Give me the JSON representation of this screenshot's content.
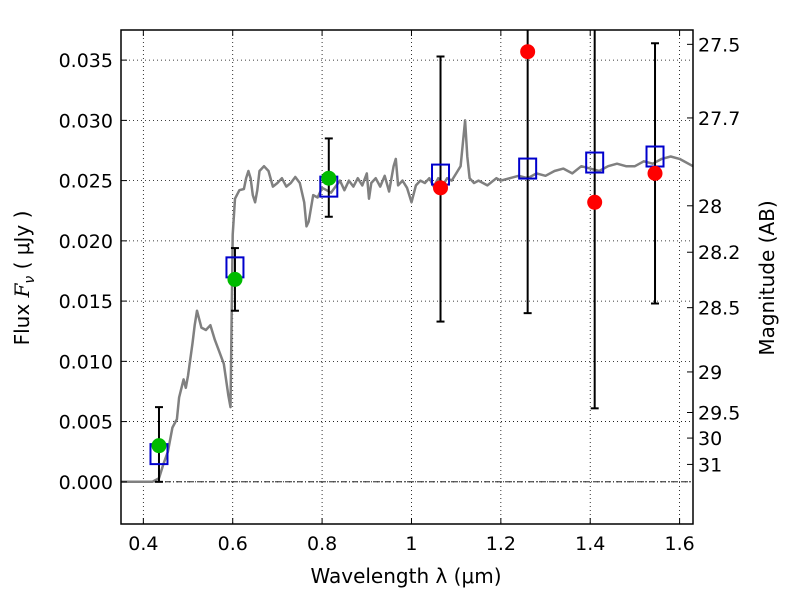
{
  "chart_data": {
    "type": "scatter",
    "xlabel": "Wavelength  λ (μm)",
    "ylabel_prefix": "Flux ",
    "ylabel_symbol": "F",
    "ylabel_sub": "ν",
    "ylabel_suffix": " ( μJy )",
    "y2label": "Magnitude (AB)",
    "xlim": [
      0.35,
      1.63
    ],
    "ylim": [
      -0.0035,
      0.0375
    ],
    "x_ticks": [
      {
        "v": 0.4,
        "label": "0.4"
      },
      {
        "v": 0.6,
        "label": "0.6"
      },
      {
        "v": 0.8,
        "label": "0.8"
      },
      {
        "v": 1.0,
        "label": "1"
      },
      {
        "v": 1.2,
        "label": "1.2"
      },
      {
        "v": 1.4,
        "label": "1.4"
      },
      {
        "v": 1.6,
        "label": "1.6"
      }
    ],
    "y_ticks": [
      {
        "v": 0.0,
        "label": "0.000"
      },
      {
        "v": 0.005,
        "label": "0.005"
      },
      {
        "v": 0.01,
        "label": "0.010"
      },
      {
        "v": 0.015,
        "label": "0.015"
      },
      {
        "v": 0.02,
        "label": "0.020"
      },
      {
        "v": 0.025,
        "label": "0.025"
      },
      {
        "v": 0.03,
        "label": "0.030"
      },
      {
        "v": 0.035,
        "label": "0.035"
      }
    ],
    "mag_ticks": [
      {
        "label": "27.5",
        "mag": 27.5
      },
      {
        "label": "27.7",
        "mag": 27.7
      },
      {
        "label": "28",
        "mag": 28.0
      },
      {
        "label": "28.2",
        "mag": 28.2
      },
      {
        "label": "28.5",
        "mag": 28.5
      },
      {
        "label": "29",
        "mag": 29.0
      },
      {
        "label": "29.5",
        "mag": 29.5
      },
      {
        "label": "30",
        "mag": 30.0
      },
      {
        "label": "31",
        "mag": 31.0
      }
    ],
    "grid": true,
    "zero_line": true,
    "spectrum": {
      "color": "#808080",
      "points": [
        [
          0.35,
          0.0
        ],
        [
          0.42,
          0.0
        ],
        [
          0.435,
          0.0003
        ],
        [
          0.445,
          0.0015
        ],
        [
          0.455,
          0.0025
        ],
        [
          0.465,
          0.0045
        ],
        [
          0.475,
          0.0052
        ],
        [
          0.48,
          0.007
        ],
        [
          0.49,
          0.0085
        ],
        [
          0.495,
          0.0078
        ],
        [
          0.5,
          0.0088
        ],
        [
          0.51,
          0.0115
        ],
        [
          0.515,
          0.013
        ],
        [
          0.52,
          0.0142
        ],
        [
          0.53,
          0.0128
        ],
        [
          0.54,
          0.0126
        ],
        [
          0.55,
          0.013
        ],
        [
          0.56,
          0.0118
        ],
        [
          0.57,
          0.0108
        ],
        [
          0.58,
          0.0098
        ],
        [
          0.59,
          0.0072
        ],
        [
          0.595,
          0.0062
        ],
        [
          0.6,
          0.0205
        ],
        [
          0.605,
          0.0235
        ],
        [
          0.615,
          0.0242
        ],
        [
          0.625,
          0.0243
        ],
        [
          0.63,
          0.0252
        ],
        [
          0.635,
          0.0258
        ],
        [
          0.64,
          0.0252
        ],
        [
          0.645,
          0.0238
        ],
        [
          0.65,
          0.0232
        ],
        [
          0.655,
          0.0242
        ],
        [
          0.66,
          0.0258
        ],
        [
          0.67,
          0.0262
        ],
        [
          0.68,
          0.0258
        ],
        [
          0.69,
          0.0245
        ],
        [
          0.7,
          0.0248
        ],
        [
          0.71,
          0.0252
        ],
        [
          0.72,
          0.0245
        ],
        [
          0.73,
          0.0248
        ],
        [
          0.74,
          0.0253
        ],
        [
          0.75,
          0.0248
        ],
        [
          0.76,
          0.0232
        ],
        [
          0.765,
          0.0212
        ],
        [
          0.77,
          0.0216
        ],
        [
          0.78,
          0.0238
        ],
        [
          0.79,
          0.0236
        ],
        [
          0.8,
          0.0244
        ],
        [
          0.81,
          0.0242
        ],
        [
          0.82,
          0.024
        ],
        [
          0.83,
          0.0245
        ],
        [
          0.84,
          0.025
        ],
        [
          0.85,
          0.0242
        ],
        [
          0.86,
          0.025
        ],
        [
          0.87,
          0.0245
        ],
        [
          0.88,
          0.0252
        ],
        [
          0.89,
          0.0246
        ],
        [
          0.9,
          0.0256
        ],
        [
          0.905,
          0.0235
        ],
        [
          0.91,
          0.0248
        ],
        [
          0.92,
          0.0252
        ],
        [
          0.93,
          0.0245
        ],
        [
          0.94,
          0.0254
        ],
        [
          0.95,
          0.0241
        ],
        [
          0.96,
          0.0262
        ],
        [
          0.965,
          0.0268
        ],
        [
          0.97,
          0.0246
        ],
        [
          0.98,
          0.025
        ],
        [
          0.99,
          0.0244
        ],
        [
          1.0,
          0.0232
        ],
        [
          1.01,
          0.0246
        ],
        [
          1.02,
          0.025
        ],
        [
          1.03,
          0.0248
        ],
        [
          1.04,
          0.0252
        ],
        [
          1.05,
          0.0245
        ],
        [
          1.06,
          0.0252
        ],
        [
          1.07,
          0.0246
        ],
        [
          1.08,
          0.0252
        ],
        [
          1.09,
          0.025
        ],
        [
          1.1,
          0.0256
        ],
        [
          1.11,
          0.0262
        ],
        [
          1.12,
          0.03
        ],
        [
          1.125,
          0.027
        ],
        [
          1.13,
          0.0252
        ],
        [
          1.14,
          0.0248
        ],
        [
          1.15,
          0.025
        ],
        [
          1.17,
          0.0246
        ],
        [
          1.19,
          0.0252
        ],
        [
          1.2,
          0.025
        ],
        [
          1.22,
          0.0252
        ],
        [
          1.24,
          0.0254
        ],
        [
          1.26,
          0.0252
        ],
        [
          1.28,
          0.0256
        ],
        [
          1.3,
          0.0254
        ],
        [
          1.32,
          0.0258
        ],
        [
          1.34,
          0.026
        ],
        [
          1.36,
          0.0256
        ],
        [
          1.38,
          0.0262
        ],
        [
          1.4,
          0.026
        ],
        [
          1.42,
          0.0258
        ],
        [
          1.44,
          0.0262
        ],
        [
          1.46,
          0.0264
        ],
        [
          1.48,
          0.0262
        ],
        [
          1.5,
          0.0262
        ],
        [
          1.52,
          0.0266
        ],
        [
          1.54,
          0.0264
        ],
        [
          1.56,
          0.0268
        ],
        [
          1.58,
          0.027
        ],
        [
          1.6,
          0.0268
        ],
        [
          1.63,
          0.0262
        ]
      ]
    },
    "model_points": {
      "marker": "open-square",
      "color": "#0000cc",
      "x": [
        0.435,
        0.605,
        0.815,
        1.065,
        1.26,
        1.41,
        1.545
      ],
      "y": [
        0.0023,
        0.0178,
        0.0245,
        0.0255,
        0.026,
        0.0265,
        0.027
      ]
    },
    "detections": {
      "marker": "filled-circle",
      "color": "#00bb00",
      "x": [
        0.435,
        0.605,
        0.815
      ],
      "y": [
        0.003,
        0.0168,
        0.0252
      ]
    },
    "measurements": {
      "marker": "filled-circle",
      "color": "#ff0000",
      "x": [
        1.065,
        1.26,
        1.41,
        1.545
      ],
      "y": [
        0.0244,
        0.0357,
        0.0232,
        0.0256
      ]
    },
    "error_bars": {
      "color": "#000000",
      "items": [
        {
          "x": 0.435,
          "lo": 0.0,
          "hi": 0.0062
        },
        {
          "x": 0.605,
          "lo": 0.0142,
          "hi": 0.0194
        },
        {
          "x": 0.815,
          "lo": 0.022,
          "hi": 0.0285
        },
        {
          "x": 1.065,
          "lo": 0.0133,
          "hi": 0.0353
        },
        {
          "x": 1.26,
          "lo": 0.014,
          "hi": 0.038
        },
        {
          "x": 1.41,
          "lo": 0.0061,
          "hi": 0.038
        },
        {
          "x": 1.545,
          "lo": 0.0148,
          "hi": 0.0364
        }
      ]
    }
  }
}
